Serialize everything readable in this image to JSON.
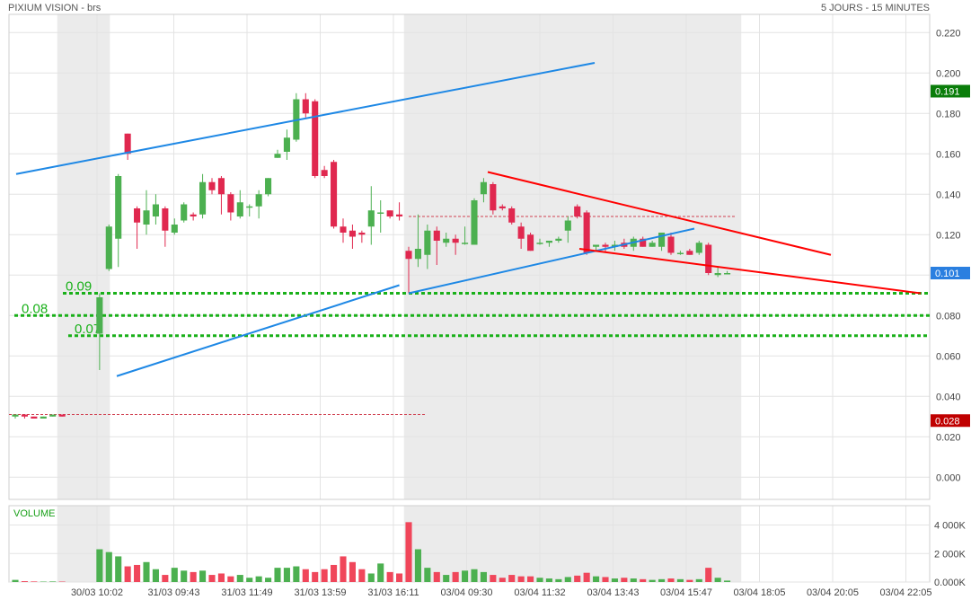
{
  "header": {
    "title": "PIXIUM VISION - brs",
    "period": "5 JOURS - 15 MINUTES"
  },
  "volume_label": "VOLUME",
  "colors": {
    "up": "#4cb050",
    "down": "#e0284f",
    "channel": "#1e88e5",
    "downtrend": "#ff0000",
    "support": "#19b019",
    "price_badge": "#0a7d0a",
    "current_badge": "#2a7fe0",
    "low_badge": "#c00000"
  },
  "chart_data": {
    "type": "candlestick",
    "y_ticks": [
      0.0,
      0.02,
      0.04,
      0.06,
      0.08,
      0.1,
      0.12,
      0.14,
      0.16,
      0.18,
      0.2,
      0.22
    ],
    "y_tick_labels": [
      "0.000",
      "0.020",
      "0.040",
      "0.060",
      "0.080",
      "0.100",
      "0.120",
      "0.140",
      "0.160",
      "0.180",
      "0.200",
      "0.220"
    ],
    "ylim": [
      -0.011,
      0.229
    ],
    "x_tick_labels": [
      "30/03 10:02",
      "31/03 09:43",
      "31/03 11:49",
      "31/03 13:59",
      "31/03 16:11",
      "03/04 09:30",
      "03/04 11:32",
      "03/04 13:43",
      "03/04 15:47",
      "03/04 18:05",
      "03/04 20:05",
      "03/04 22:05"
    ],
    "volume_ticks": [
      0,
      2000,
      4000
    ],
    "volume_tick_labels": [
      "0.000K",
      "2 000K",
      "4 000K"
    ],
    "volume_max": 4600,
    "price_badges": [
      {
        "value": 0.191,
        "label": "0.191",
        "kind": "price"
      },
      {
        "value": 0.101,
        "label": "0.101",
        "kind": "current"
      },
      {
        "value": 0.028,
        "label": "0.028",
        "kind": "low"
      }
    ],
    "candles": [
      {
        "o": 0.03,
        "h": 0.031,
        "l": 0.029,
        "c": 0.031,
        "v": 150
      },
      {
        "o": 0.031,
        "h": 0.031,
        "l": 0.029,
        "c": 0.03,
        "v": 60
      },
      {
        "o": 0.03,
        "h": 0.03,
        "l": 0.029,
        "c": 0.029,
        "v": 40
      },
      {
        "o": 0.029,
        "h": 0.03,
        "l": 0.029,
        "c": 0.03,
        "v": 30
      },
      {
        "o": 0.03,
        "h": 0.031,
        "l": 0.03,
        "c": 0.031,
        "v": 40
      },
      {
        "o": 0.031,
        "h": 0.031,
        "l": 0.03,
        "c": 0.03,
        "v": 30
      },
      {
        "o": 0.071,
        "h": 0.091,
        "l": 0.053,
        "c": 0.089,
        "v": 2300
      },
      {
        "o": 0.103,
        "h": 0.125,
        "l": 0.102,
        "c": 0.124,
        "v": 2100
      },
      {
        "o": 0.118,
        "h": 0.15,
        "l": 0.104,
        "c": 0.149,
        "v": 1800
      },
      {
        "o": 0.17,
        "h": 0.17,
        "l": 0.157,
        "c": 0.16,
        "v": 1100
      },
      {
        "o": 0.133,
        "h": 0.134,
        "l": 0.113,
        "c": 0.126,
        "v": 1200
      },
      {
        "o": 0.125,
        "h": 0.142,
        "l": 0.12,
        "c": 0.132,
        "v": 1400
      },
      {
        "o": 0.129,
        "h": 0.14,
        "l": 0.125,
        "c": 0.135,
        "v": 900
      },
      {
        "o": 0.133,
        "h": 0.134,
        "l": 0.114,
        "c": 0.122,
        "v": 500
      },
      {
        "o": 0.121,
        "h": 0.128,
        "l": 0.12,
        "c": 0.125,
        "v": 1000
      },
      {
        "o": 0.127,
        "h": 0.136,
        "l": 0.126,
        "c": 0.135,
        "v": 800
      },
      {
        "o": 0.13,
        "h": 0.131,
        "l": 0.127,
        "c": 0.129,
        "v": 700
      },
      {
        "o": 0.13,
        "h": 0.15,
        "l": 0.128,
        "c": 0.146,
        "v": 800
      },
      {
        "o": 0.146,
        "h": 0.148,
        "l": 0.14,
        "c": 0.142,
        "v": 500
      },
      {
        "o": 0.148,
        "h": 0.149,
        "l": 0.13,
        "c": 0.14,
        "v": 600
      },
      {
        "o": 0.14,
        "h": 0.141,
        "l": 0.127,
        "c": 0.131,
        "v": 400
      },
      {
        "o": 0.129,
        "h": 0.142,
        "l": 0.128,
        "c": 0.136,
        "v": 500
      },
      {
        "o": 0.134,
        "h": 0.135,
        "l": 0.129,
        "c": 0.134,
        "v": 300
      },
      {
        "o": 0.134,
        "h": 0.142,
        "l": 0.128,
        "c": 0.14,
        "v": 400
      },
      {
        "o": 0.14,
        "h": 0.148,
        "l": 0.139,
        "c": 0.148,
        "v": 300
      },
      {
        "o": 0.158,
        "h": 0.162,
        "l": 0.158,
        "c": 0.16,
        "v": 1000
      },
      {
        "o": 0.161,
        "h": 0.172,
        "l": 0.157,
        "c": 0.168,
        "v": 1000
      },
      {
        "o": 0.167,
        "h": 0.19,
        "l": 0.166,
        "c": 0.187,
        "v": 1100
      },
      {
        "o": 0.187,
        "h": 0.19,
        "l": 0.178,
        "c": 0.18,
        "v": 900
      },
      {
        "o": 0.186,
        "h": 0.187,
        "l": 0.148,
        "c": 0.149,
        "v": 700
      },
      {
        "o": 0.152,
        "h": 0.154,
        "l": 0.148,
        "c": 0.149,
        "v": 900
      },
      {
        "o": 0.156,
        "h": 0.157,
        "l": 0.123,
        "c": 0.124,
        "v": 1200
      },
      {
        "o": 0.124,
        "h": 0.128,
        "l": 0.116,
        "c": 0.121,
        "v": 1800
      },
      {
        "o": 0.122,
        "h": 0.125,
        "l": 0.113,
        "c": 0.119,
        "v": 1400
      },
      {
        "o": 0.121,
        "h": 0.122,
        "l": 0.116,
        "c": 0.12,
        "v": 900
      },
      {
        "o": 0.124,
        "h": 0.144,
        "l": 0.115,
        "c": 0.132,
        "v": 600
      },
      {
        "o": 0.131,
        "h": 0.137,
        "l": 0.121,
        "c": 0.131,
        "v": 1300
      },
      {
        "o": 0.132,
        "h": 0.132,
        "l": 0.128,
        "c": 0.129,
        "v": 700
      },
      {
        "o": 0.13,
        "h": 0.136,
        "l": 0.127,
        "c": 0.129,
        "v": 600
      },
      {
        "o": 0.112,
        "h": 0.114,
        "l": 0.091,
        "c": 0.108,
        "v": 4200
      },
      {
        "o": 0.108,
        "h": 0.13,
        "l": 0.104,
        "c": 0.113,
        "v": 2300
      },
      {
        "o": 0.11,
        "h": 0.125,
        "l": 0.103,
        "c": 0.122,
        "v": 1000
      },
      {
        "o": 0.122,
        "h": 0.124,
        "l": 0.105,
        "c": 0.117,
        "v": 700
      },
      {
        "o": 0.116,
        "h": 0.121,
        "l": 0.114,
        "c": 0.118,
        "v": 500
      },
      {
        "o": 0.118,
        "h": 0.12,
        "l": 0.11,
        "c": 0.116,
        "v": 700
      },
      {
        "o": 0.116,
        "h": 0.124,
        "l": 0.115,
        "c": 0.116,
        "v": 800
      },
      {
        "o": 0.115,
        "h": 0.138,
        "l": 0.115,
        "c": 0.137,
        "v": 900
      },
      {
        "o": 0.14,
        "h": 0.148,
        "l": 0.136,
        "c": 0.146,
        "v": 700
      },
      {
        "o": 0.145,
        "h": 0.146,
        "l": 0.13,
        "c": 0.132,
        "v": 500
      },
      {
        "o": 0.134,
        "h": 0.135,
        "l": 0.132,
        "c": 0.133,
        "v": 300
      },
      {
        "o": 0.133,
        "h": 0.134,
        "l": 0.125,
        "c": 0.126,
        "v": 500
      },
      {
        "o": 0.124,
        "h": 0.126,
        "l": 0.113,
        "c": 0.118,
        "v": 400
      },
      {
        "o": 0.12,
        "h": 0.121,
        "l": 0.112,
        "c": 0.112,
        "v": 400
      },
      {
        "o": 0.116,
        "h": 0.118,
        "l": 0.115,
        "c": 0.116,
        "v": 300
      },
      {
        "o": 0.116,
        "h": 0.117,
        "l": 0.114,
        "c": 0.117,
        "v": 250
      },
      {
        "o": 0.117,
        "h": 0.119,
        "l": 0.116,
        "c": 0.118,
        "v": 200
      },
      {
        "o": 0.122,
        "h": 0.129,
        "l": 0.116,
        "c": 0.127,
        "v": 350
      },
      {
        "o": 0.134,
        "h": 0.135,
        "l": 0.128,
        "c": 0.129,
        "v": 450
      },
      {
        "o": 0.131,
        "h": 0.132,
        "l": 0.11,
        "c": 0.111,
        "v": 650
      },
      {
        "o": 0.114,
        "h": 0.115,
        "l": 0.112,
        "c": 0.115,
        "v": 400
      },
      {
        "o": 0.115,
        "h": 0.116,
        "l": 0.111,
        "c": 0.114,
        "v": 350
      },
      {
        "o": 0.114,
        "h": 0.117,
        "l": 0.112,
        "c": 0.115,
        "v": 250
      },
      {
        "o": 0.116,
        "h": 0.118,
        "l": 0.113,
        "c": 0.114,
        "v": 300
      },
      {
        "o": 0.114,
        "h": 0.119,
        "l": 0.112,
        "c": 0.118,
        "v": 250
      },
      {
        "o": 0.118,
        "h": 0.119,
        "l": 0.114,
        "c": 0.114,
        "v": 200
      },
      {
        "o": 0.114,
        "h": 0.117,
        "l": 0.114,
        "c": 0.116,
        "v": 150
      },
      {
        "o": 0.114,
        "h": 0.121,
        "l": 0.112,
        "c": 0.121,
        "v": 200
      },
      {
        "o": 0.119,
        "h": 0.121,
        "l": 0.11,
        "c": 0.111,
        "v": 250
      },
      {
        "o": 0.111,
        "h": 0.112,
        "l": 0.11,
        "c": 0.111,
        "v": 200
      },
      {
        "o": 0.112,
        "h": 0.113,
        "l": 0.11,
        "c": 0.11,
        "v": 150
      },
      {
        "o": 0.111,
        "h": 0.117,
        "l": 0.11,
        "c": 0.116,
        "v": 200
      },
      {
        "o": 0.115,
        "h": 0.116,
        "l": 0.1,
        "c": 0.101,
        "v": 1000
      },
      {
        "o": 0.1,
        "h": 0.104,
        "l": 0.099,
        "c": 0.101,
        "v": 300
      },
      {
        "o": 0.101,
        "h": 0.102,
        "l": 0.101,
        "c": 0.101,
        "v": 100
      }
    ],
    "support_lines": [
      {
        "value": 0.091,
        "label": "0.09"
      },
      {
        "value": 0.08,
        "label": "0.08"
      },
      {
        "value": 0.07,
        "label": "0.07"
      }
    ],
    "reference_lines": [
      {
        "value": 0.129,
        "from_candle": 39,
        "to_candle": 74
      },
      {
        "value": 0.031,
        "from_candle": 0,
        "to_candle": 34
      }
    ],
    "trendlines": [
      {
        "kind": "channel",
        "points": [
          [
            0,
            0.15
          ],
          [
            38,
            0.205
          ]
        ]
      },
      {
        "kind": "channel",
        "points": [
          [
            6,
            0.05
          ],
          [
            38,
            0.095
          ]
        ]
      },
      {
        "kind": "channel",
        "points": [
          [
            39,
            0.091
          ],
          [
            75,
            0.123
          ]
        ]
      },
      {
        "kind": "downtrend",
        "points": [
          [
            47,
            0.151
          ],
          [
            75,
            0.11
          ]
        ]
      },
      {
        "kind": "downtrend",
        "points": [
          [
            58,
            0.113
          ],
          [
            75,
            0.091
          ]
        ]
      }
    ],
    "shaded_sessions": [
      [
        0,
        5
      ],
      [
        39,
        74
      ]
    ],
    "grid": true
  }
}
